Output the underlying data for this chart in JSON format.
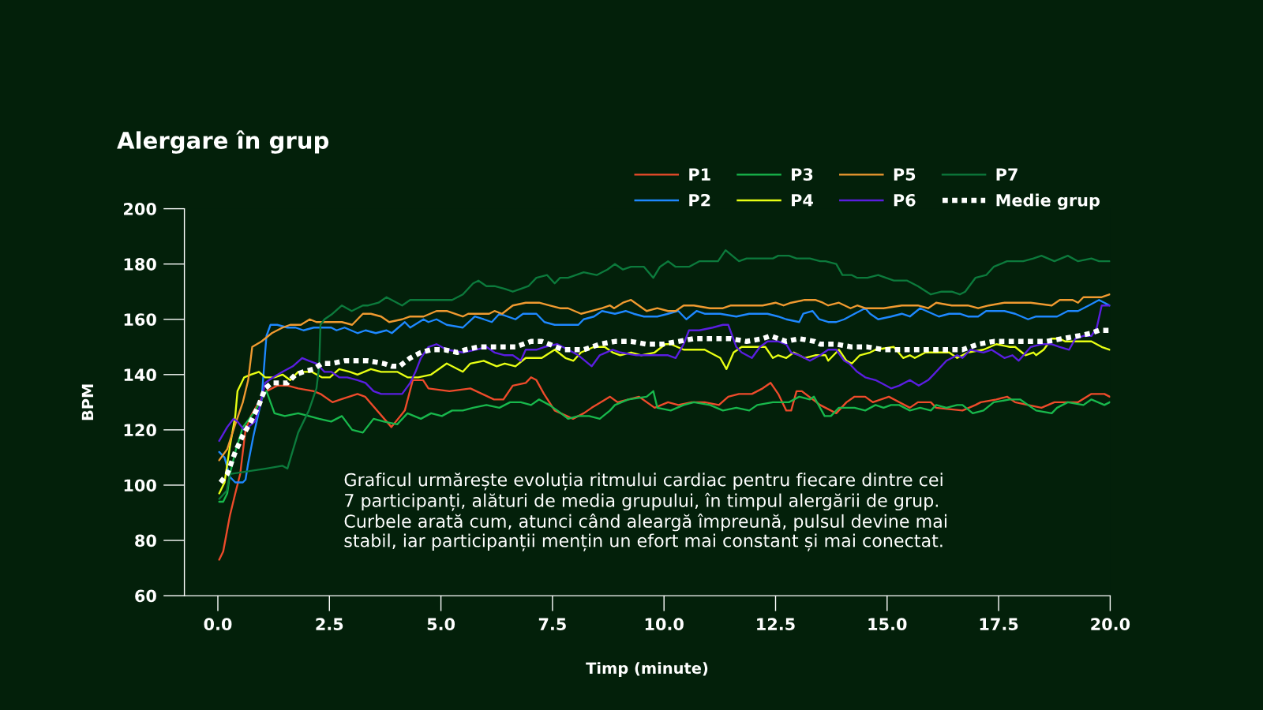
{
  "chart_data": {
    "type": "line",
    "title": "Alergare în grup",
    "xlabel": "Timp (minute)",
    "ylabel": "BPM",
    "annotations": [
      "Graficul urmărește evoluția ritmului cardiac pentru fiecare dintre cei\n7 participanți, alături de media grupului, în timpul alergării de grup.\nCurbele arată cum, atunci când aleargă împreună, pulsul devine mai\nstabil, iar participanții mențin un efort mai constant și mai conectat."
    ],
    "xlim": [
      -0.75,
      20
    ],
    "ylim": [
      60,
      200
    ],
    "xticks": [
      {
        "value": 0,
        "label": "0.0"
      },
      {
        "value": 2.5,
        "label": "2.5"
      },
      {
        "value": 5,
        "label": "5.0"
      },
      {
        "value": 7.5,
        "label": "7.5"
      },
      {
        "value": 10,
        "label": "10.0"
      },
      {
        "value": 12.5,
        "label": "12.5"
      },
      {
        "value": 15,
        "label": "15.0"
      },
      {
        "value": 17.5,
        "label": "17.5"
      },
      {
        "value": 20,
        "label": "20.0"
      }
    ],
    "yticks": [
      60,
      80,
      100,
      120,
      140,
      160,
      180,
      200
    ],
    "legend": "top right",
    "series": [
      {
        "name": "P1",
        "color": "#ee4b2b",
        "line_style": "solid",
        "x": [
          0.03,
          0.12,
          0.27,
          0.39,
          0.5,
          0.62,
          0.74,
          0.92,
          1.09,
          1.33,
          1.57,
          1.8,
          2.15,
          2.3,
          2.57,
          2.75,
          3.13,
          3.3,
          3.89,
          4.19,
          4.37,
          4.6,
          4.72,
          5.19,
          5.66,
          6.19,
          6.4,
          6.61,
          6.9,
          7.02,
          7.14,
          7.31,
          7.55,
          7.96,
          8.2,
          8.38,
          8.79,
          8.96,
          9.44,
          9.79,
          10.09,
          10.32,
          10.62,
          10.91,
          11.23,
          11.44,
          11.68,
          11.97,
          12.21,
          12.39,
          12.56,
          12.74,
          12.85,
          12.97,
          13.09,
          13.5,
          13.86,
          14.09,
          14.27,
          14.51,
          14.68,
          15.04,
          15.51,
          15.69,
          15.98,
          16.1,
          16.69,
          16.98,
          17.1,
          17.45,
          17.69,
          17.87,
          18.16,
          18.46,
          18.75,
          19.28,
          19.58,
          19.87,
          19.99
        ],
        "values": [
          73,
          76,
          89,
          97,
          104,
          120,
          125,
          130,
          134,
          136,
          136,
          135,
          134,
          133,
          130,
          131,
          133,
          132,
          121,
          127,
          138,
          138,
          135,
          134,
          135,
          131,
          131,
          136,
          137,
          139,
          138,
          133,
          127,
          124,
          126,
          128,
          132,
          130,
          132,
          128,
          130,
          129,
          130,
          130,
          129,
          132,
          133,
          133,
          135,
          137,
          133,
          127,
          127,
          134,
          134,
          129,
          126,
          130,
          132,
          132,
          130,
          132,
          128,
          130,
          130,
          128,
          127,
          129,
          130,
          131,
          132,
          130,
          129,
          128,
          130,
          130,
          133,
          133,
          132
        ]
      },
      {
        "name": "P2",
        "color": "#1e88ff",
        "line_style": "solid",
        "x": [
          0.03,
          0.15,
          0.27,
          0.39,
          0.56,
          0.62,
          0.68,
          0.8,
          0.98,
          1.06,
          1.09,
          1.18,
          1.33,
          1.56,
          1.74,
          1.92,
          2.15,
          2.39,
          2.54,
          2.66,
          2.84,
          3.13,
          3.31,
          3.54,
          3.78,
          3.9,
          4.19,
          4.31,
          4.61,
          4.72,
          4.9,
          5.13,
          5.49,
          5.76,
          5.96,
          6.14,
          6.31,
          6.67,
          6.84,
          7.14,
          7.32,
          7.55,
          7.85,
          8.08,
          8.2,
          8.43,
          8.61,
          8.9,
          9.14,
          9.32,
          9.55,
          9.85,
          10.09,
          10.32,
          10.5,
          10.73,
          10.91,
          11.26,
          11.62,
          11.91,
          12.32,
          12.56,
          12.74,
          13.03,
          13.12,
          13.33,
          13.48,
          13.68,
          13.86,
          14.04,
          14.27,
          14.51,
          14.62,
          14.8,
          15.09,
          15.33,
          15.51,
          15.74,
          16.16,
          16.39,
          16.63,
          16.81,
          17.04,
          17.22,
          17.63,
          17.87,
          18.16,
          18.34,
          18.81,
          19.05,
          19.28,
          19.52,
          19.75,
          19.99
        ],
        "values": [
          112,
          110,
          103,
          101,
          101,
          102,
          108,
          118,
          131,
          148,
          154,
          158,
          158,
          157,
          157,
          156,
          157,
          157,
          157,
          156,
          157,
          155,
          156,
          155,
          156,
          155,
          159,
          157,
          160,
          159,
          160,
          158,
          157,
          161,
          160,
          159,
          162,
          160,
          162,
          162,
          159,
          158,
          158,
          158,
          160,
          161,
          163,
          162,
          163,
          162,
          161,
          161,
          162,
          163,
          160,
          163,
          162,
          162,
          161,
          162,
          162,
          161,
          160,
          159,
          162,
          163,
          160,
          159,
          159,
          160,
          162,
          164,
          162,
          160,
          161,
          162,
          161,
          164,
          161,
          162,
          162,
          161,
          161,
          163,
          163,
          162,
          160,
          161,
          161,
          163,
          163,
          165,
          167,
          165
        ]
      },
      {
        "name": "P3",
        "color": "#18b84c",
        "line_style": "solid",
        "x": [
          0.03,
          0.12,
          0.21,
          0.27,
          0.39,
          0.56,
          0.8,
          0.98,
          1.09,
          1.27,
          1.5,
          1.8,
          2.04,
          2.27,
          2.54,
          2.78,
          3.01,
          3.25,
          3.49,
          3.72,
          4.02,
          4.25,
          4.55,
          4.78,
          5.02,
          5.25,
          5.49,
          5.72,
          6.02,
          6.31,
          6.55,
          6.79,
          7.02,
          7.2,
          7.43,
          7.61,
          7.85,
          8.08,
          8.32,
          8.56,
          8.79,
          8.9,
          9.2,
          9.61,
          9.76,
          9.85,
          10.15,
          10.44,
          10.67,
          11.03,
          11.32,
          11.62,
          11.91,
          12.09,
          12.44,
          12.8,
          13.03,
          13.27,
          13.36,
          13.6,
          13.74,
          13.92,
          14.27,
          14.51,
          14.74,
          14.92,
          15.09,
          15.27,
          15.51,
          15.74,
          15.98,
          16.1,
          16.33,
          16.57,
          16.69,
          16.92,
          17.16,
          17.39,
          17.75,
          17.98,
          18.34,
          18.69,
          18.81,
          19.05,
          19.4,
          19.58,
          19.87,
          19.99
        ],
        "values": [
          94,
          94,
          97,
          104,
          112,
          121,
          126,
          131,
          134,
          126,
          125,
          126,
          125,
          124,
          123,
          125,
          120,
          119,
          124,
          123,
          122,
          126,
          124,
          126,
          125,
          127,
          127,
          128,
          129,
          128,
          130,
          130,
          129,
          131,
          129,
          127,
          124,
          125,
          125,
          124,
          127,
          129,
          131,
          132,
          134,
          128,
          127,
          129,
          130,
          129,
          127,
          128,
          127,
          129,
          130,
          130,
          132,
          131,
          132,
          125,
          125,
          128,
          128,
          127,
          129,
          128,
          129,
          129,
          127,
          128,
          127,
          129,
          128,
          129,
          129,
          126,
          127,
          130,
          131,
          131,
          127,
          126,
          128,
          130,
          129,
          131,
          129,
          130
        ]
      },
      {
        "name": "P4",
        "color": "#e8ff14",
        "line_style": "solid",
        "x": [
          0.03,
          0.15,
          0.27,
          0.39,
          0.44,
          0.59,
          0.74,
          0.92,
          1.06,
          1.27,
          1.45,
          1.62,
          1.8,
          2.1,
          2.33,
          2.51,
          2.72,
          2.96,
          3.13,
          3.43,
          3.66,
          3.9,
          4.02,
          4.25,
          4.49,
          4.78,
          5.13,
          5.49,
          5.66,
          5.96,
          6.25,
          6.43,
          6.67,
          6.9,
          7.26,
          7.55,
          7.79,
          7.97,
          8.14,
          8.43,
          8.67,
          8.85,
          9.02,
          9.26,
          9.49,
          9.79,
          10.03,
          10.15,
          10.44,
          10.73,
          10.91,
          11.26,
          11.4,
          11.56,
          11.74,
          12.27,
          12.44,
          12.56,
          12.74,
          12.91,
          13.15,
          13.39,
          13.62,
          13.68,
          13.92,
          14.09,
          14.21,
          14.39,
          14.62,
          14.74,
          15.15,
          15.36,
          15.51,
          15.62,
          15.86,
          16.39,
          16.57,
          16.81,
          17.16,
          17.45,
          17.75,
          17.87,
          18.1,
          18.28,
          18.34,
          18.51,
          18.69,
          18.87,
          18.99,
          19.46,
          19.58,
          19.81,
          19.99
        ],
        "values": [
          97,
          101,
          114,
          125,
          134,
          139,
          140,
          141,
          139,
          139,
          140,
          138,
          141,
          141,
          139,
          139,
          142,
          141,
          140,
          142,
          141,
          141,
          141,
          139,
          139,
          140,
          144,
          141,
          144,
          145,
          143,
          144,
          143,
          146,
          146,
          149,
          146,
          145,
          148,
          150,
          150,
          148,
          147,
          148,
          147,
          148,
          151,
          151,
          149,
          149,
          149,
          146,
          142,
          148,
          150,
          150,
          146,
          147,
          146,
          148,
          146,
          147,
          147,
          145,
          149,
          145,
          144,
          147,
          148,
          149,
          150,
          146,
          147,
          146,
          148,
          148,
          146,
          148,
          149,
          151,
          150,
          150,
          147,
          148,
          147,
          149,
          153,
          153,
          152,
          152,
          152,
          150,
          149
        ]
      },
      {
        "name": "P5",
        "color": "#f09a30",
        "line_style": "solid",
        "x": [
          0.03,
          0.21,
          0.39,
          0.56,
          0.68,
          0.77,
          0.98,
          1.21,
          1.45,
          1.62,
          1.86,
          2.06,
          2.21,
          2.45,
          2.54,
          2.78,
          3.01,
          3.25,
          3.43,
          3.66,
          3.84,
          4.13,
          4.31,
          4.61,
          4.9,
          5.13,
          5.31,
          5.49,
          5.61,
          5.84,
          6.08,
          6.2,
          6.37,
          6.61,
          6.9,
          7.2,
          7.43,
          7.67,
          7.85,
          8.14,
          8.61,
          8.79,
          8.88,
          9.08,
          9.26,
          9.61,
          9.85,
          10.09,
          10.26,
          10.44,
          10.67,
          11.03,
          11.32,
          11.5,
          12.03,
          12.21,
          12.5,
          12.68,
          12.85,
          13.15,
          13.39,
          13.56,
          13.68,
          13.92,
          14.18,
          14.33,
          14.51,
          14.92,
          15.33,
          15.69,
          15.92,
          16.1,
          16.45,
          16.81,
          17.04,
          17.28,
          17.63,
          18.22,
          18.69,
          18.87,
          19.16,
          19.28,
          19.4,
          19.64,
          19.81,
          19.99
        ],
        "values": [
          109,
          113,
          122,
          130,
          138,
          150,
          152,
          155,
          157,
          158,
          158,
          160,
          159,
          159,
          159,
          159,
          158,
          162,
          162,
          161,
          159,
          160,
          161,
          161,
          163,
          163,
          162,
          161,
          162,
          162,
          162,
          163,
          162,
          165,
          166,
          166,
          165,
          164,
          164,
          162,
          164,
          165,
          164,
          166,
          167,
          163,
          164,
          163,
          163,
          165,
          165,
          164,
          164,
          165,
          165,
          165,
          166,
          165,
          166,
          167,
          167,
          166,
          165,
          166,
          164,
          165,
          164,
          164,
          165,
          165,
          164,
          166,
          165,
          165,
          164,
          165,
          166,
          166,
          165,
          167,
          167,
          166,
          168,
          168,
          168,
          169
        ]
      },
      {
        "name": "P6",
        "color": "#5a1ee0",
        "line_style": "solid",
        "x": [
          0.03,
          0.21,
          0.35,
          0.44,
          0.59,
          0.68,
          0.83,
          0.95,
          1.06,
          1.24,
          1.45,
          1.68,
          1.89,
          2.04,
          2.21,
          2.39,
          2.54,
          2.72,
          2.9,
          3.13,
          3.31,
          3.49,
          3.66,
          3.78,
          3.96,
          4.13,
          4.31,
          4.43,
          4.55,
          4.72,
          4.9,
          5.13,
          5.49,
          5.78,
          6.02,
          6.2,
          6.43,
          6.61,
          6.79,
          6.9,
          7.14,
          7.32,
          7.61,
          7.85,
          8.08,
          8.38,
          8.56,
          8.85,
          9.02,
          9.38,
          9.67,
          10.09,
          10.26,
          10.44,
          10.56,
          10.79,
          11.09,
          11.32,
          11.44,
          11.62,
          11.74,
          11.97,
          12.15,
          12.32,
          12.56,
          12.74,
          12.85,
          13.03,
          13.27,
          13.5,
          13.68,
          13.86,
          14.04,
          14.15,
          14.33,
          14.51,
          14.74,
          14.86,
          15.09,
          15.27,
          15.51,
          15.71,
          15.92,
          16.04,
          16.33,
          16.57,
          16.69,
          16.87,
          17.16,
          17.34,
          17.63,
          17.81,
          17.95,
          18.22,
          18.46,
          18.69,
          18.87,
          19.08,
          19.22,
          19.4,
          19.58,
          19.7,
          19.81,
          19.93,
          19.99
        ],
        "values": [
          116,
          121,
          124,
          123,
          120,
          121,
          123,
          129,
          137,
          139,
          141,
          143,
          146,
          145,
          144,
          141,
          141,
          139,
          139,
          138,
          137,
          134,
          133,
          133,
          133,
          133,
          137,
          141,
          146,
          150,
          151,
          149,
          148,
          149,
          150,
          148,
          147,
          147,
          145,
          149,
          149,
          150,
          151,
          149,
          147,
          143,
          147,
          149,
          148,
          147,
          147,
          147,
          146,
          151,
          156,
          156,
          157,
          158,
          158,
          150,
          148,
          146,
          150,
          152,
          152,
          151,
          148,
          147,
          145,
          147,
          149,
          149,
          145,
          144,
          141,
          139,
          138,
          137,
          135,
          136,
          138,
          136,
          138,
          140,
          145,
          147,
          146,
          149,
          148,
          149,
          146,
          147,
          145,
          150,
          151,
          151,
          150,
          149,
          153,
          154,
          154,
          157,
          165,
          165,
          165
        ]
      },
      {
        "name": "P7",
        "color": "#0c7a3c",
        "line_style": "solid",
        "x": [
          0.03,
          0.2,
          0.27,
          0.68,
          1.09,
          1.45,
          1.56,
          1.8,
          2.04,
          2.21,
          2.27,
          2.3,
          2.39,
          2.57,
          2.78,
          3.0,
          3.25,
          3.37,
          3.6,
          3.78,
          4.13,
          4.31,
          4.72,
          4.9,
          5.25,
          5.49,
          5.72,
          5.84,
          6.02,
          6.2,
          6.43,
          6.61,
          6.79,
          6.96,
          7.14,
          7.38,
          7.55,
          7.67,
          7.85,
          8.2,
          8.49,
          8.73,
          8.9,
          9.08,
          9.26,
          9.55,
          9.76,
          9.91,
          10.09,
          10.26,
          10.56,
          10.79,
          11.03,
          11.21,
          11.38,
          11.68,
          11.85,
          11.97,
          12.44,
          12.56,
          12.8,
          12.97,
          13.27,
          13.5,
          13.62,
          13.86,
          14.0,
          14.21,
          14.33,
          14.56,
          14.8,
          15.15,
          15.45,
          15.69,
          15.98,
          16.22,
          16.45,
          16.63,
          16.75,
          16.98,
          17.22,
          17.39,
          17.69,
          17.93,
          18.05,
          18.28,
          18.46,
          18.75,
          19.05,
          19.28,
          19.58,
          19.75,
          19.99
        ],
        "values": [
          95,
          98,
          104,
          105,
          106,
          107,
          106,
          119,
          127,
          135,
          143,
          158,
          160,
          162,
          165,
          163,
          165,
          165,
          166,
          168,
          165,
          167,
          167,
          167,
          167,
          169,
          173,
          174,
          172,
          172,
          171,
          170,
          171,
          172,
          175,
          176,
          173,
          175,
          175,
          177,
          176,
          178,
          180,
          178,
          179,
          179,
          175,
          179,
          181,
          179,
          179,
          181,
          181,
          181,
          185,
          181,
          182,
          182,
          182,
          183,
          183,
          182,
          182,
          181,
          181,
          180,
          176,
          176,
          175,
          175,
          176,
          174,
          174,
          172,
          169,
          170,
          170,
          169,
          170,
          175,
          176,
          179,
          181,
          181,
          181,
          182,
          183,
          181,
          183,
          181,
          182,
          181,
          181
        ]
      },
      {
        "name": "Medie grup",
        "color": "#ffffff",
        "line_style": "dotted",
        "x": [
          0.06,
          0.21,
          0.39,
          0.56,
          0.74,
          0.92,
          1.06,
          1.21,
          1.39,
          1.56,
          1.74,
          1.92,
          2.15,
          2.33,
          2.57,
          2.84,
          3.13,
          3.37,
          3.72,
          3.9,
          4.07,
          4.31,
          4.55,
          4.78,
          5.08,
          5.37,
          5.55,
          5.84,
          6.08,
          6.37,
          6.67,
          7.02,
          7.26,
          7.43,
          7.73,
          7.97,
          8.2,
          8.56,
          8.9,
          9.26,
          9.61,
          9.97,
          10.32,
          10.67,
          11.15,
          11.5,
          11.85,
          12.21,
          12.39,
          12.74,
          13.03,
          13.38,
          13.5,
          13.86,
          14.21,
          14.56,
          14.92,
          15.27,
          15.62,
          15.98,
          16.33,
          16.69,
          17.04,
          17.39,
          17.87,
          18.22,
          18.57,
          18.93,
          19.28,
          19.58,
          19.75,
          19.99
        ],
        "values": [
          101,
          104,
          112,
          118,
          123,
          129,
          135,
          137,
          137,
          137,
          140,
          141,
          142,
          144,
          144,
          145,
          145,
          145,
          144,
          143,
          143,
          146,
          148,
          149,
          149,
          148,
          149,
          150,
          150,
          150,
          150,
          152,
          152,
          151,
          149,
          149,
          149,
          151,
          152,
          152,
          151,
          151,
          152,
          153,
          153,
          153,
          152,
          153,
          154,
          152,
          153,
          152,
          151,
          151,
          150,
          150,
          149,
          149,
          149,
          149,
          149,
          149,
          151,
          152,
          152,
          152,
          152,
          153,
          154,
          155,
          156,
          156
        ]
      }
    ]
  }
}
